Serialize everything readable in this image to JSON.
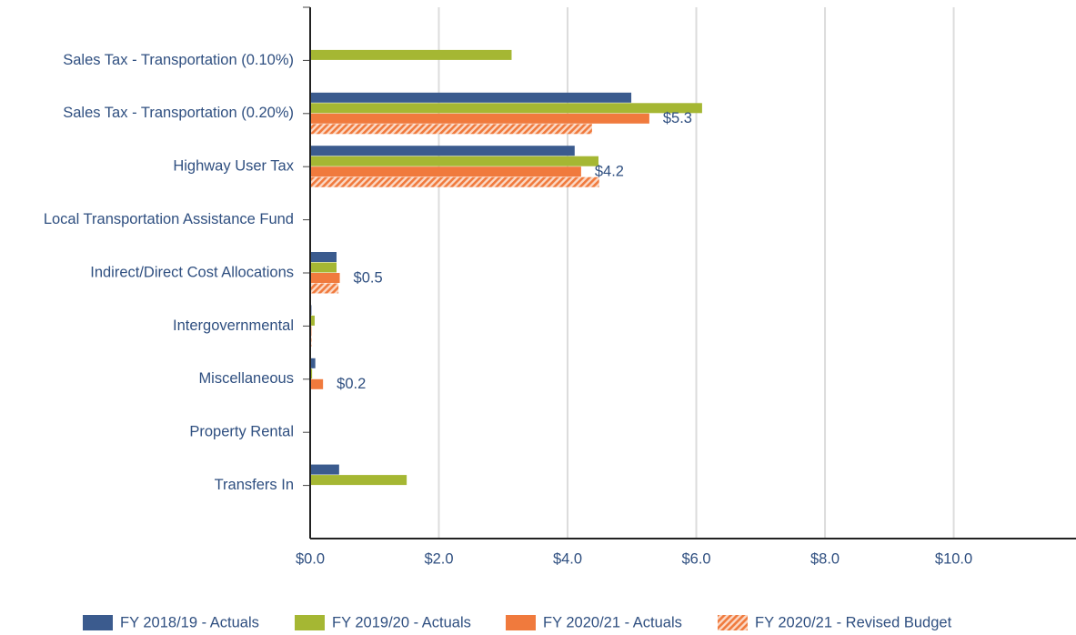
{
  "chart_data": {
    "type": "hbar",
    "categories": [
      "Sales Tax - Transportation (0.10%)",
      "Sales Tax - Transportation (0.20%)",
      "Highway User Tax",
      "Local Transportation Assistance Fund",
      "Indirect/Direct Cost Allocations",
      "Intergovernmental",
      "Miscellaneous",
      "Property Rental",
      "Transfers In"
    ],
    "series": [
      {
        "name": "FY 2018/19 - Actuals",
        "color": "#3b5b8e",
        "values": [
          0,
          4.99,
          4.11,
          0,
          0.41,
          0.02,
          0.08,
          0,
          0.45
        ]
      },
      {
        "name": "FY 2019/20 - Actuals",
        "color": "#a5b733",
        "values": [
          3.13,
          6.09,
          4.48,
          0,
          0.41,
          0.07,
          0.03,
          0,
          1.5
        ]
      },
      {
        "name": "FY 2020/21 - Actuals",
        "color": "#f07a3d",
        "values": [
          0,
          5.27,
          4.21,
          0,
          0.46,
          0.02,
          0.2,
          0,
          0
        ],
        "value_labels": [
          null,
          "$5.3",
          "$4.2",
          null,
          "$0.5",
          null,
          "$0.2",
          null,
          null
        ]
      },
      {
        "name": "FY 2020/21 - Revised Budget",
        "color": "#f07a3d",
        "hatched": true,
        "values": [
          0,
          4.38,
          4.49,
          0,
          0.44,
          0.02,
          0,
          0,
          0
        ]
      }
    ],
    "xlim": [
      0,
      11.9
    ],
    "xticks": [
      {
        "value": 0,
        "label": "$0.0"
      },
      {
        "value": 2,
        "label": "$2.0"
      },
      {
        "value": 4,
        "label": "$4.0"
      },
      {
        "value": 6,
        "label": "$6.0"
      },
      {
        "value": 8,
        "label": "$8.0"
      },
      {
        "value": 10,
        "label": "$10.0"
      }
    ],
    "grid": true,
    "legend": "bottom"
  }
}
